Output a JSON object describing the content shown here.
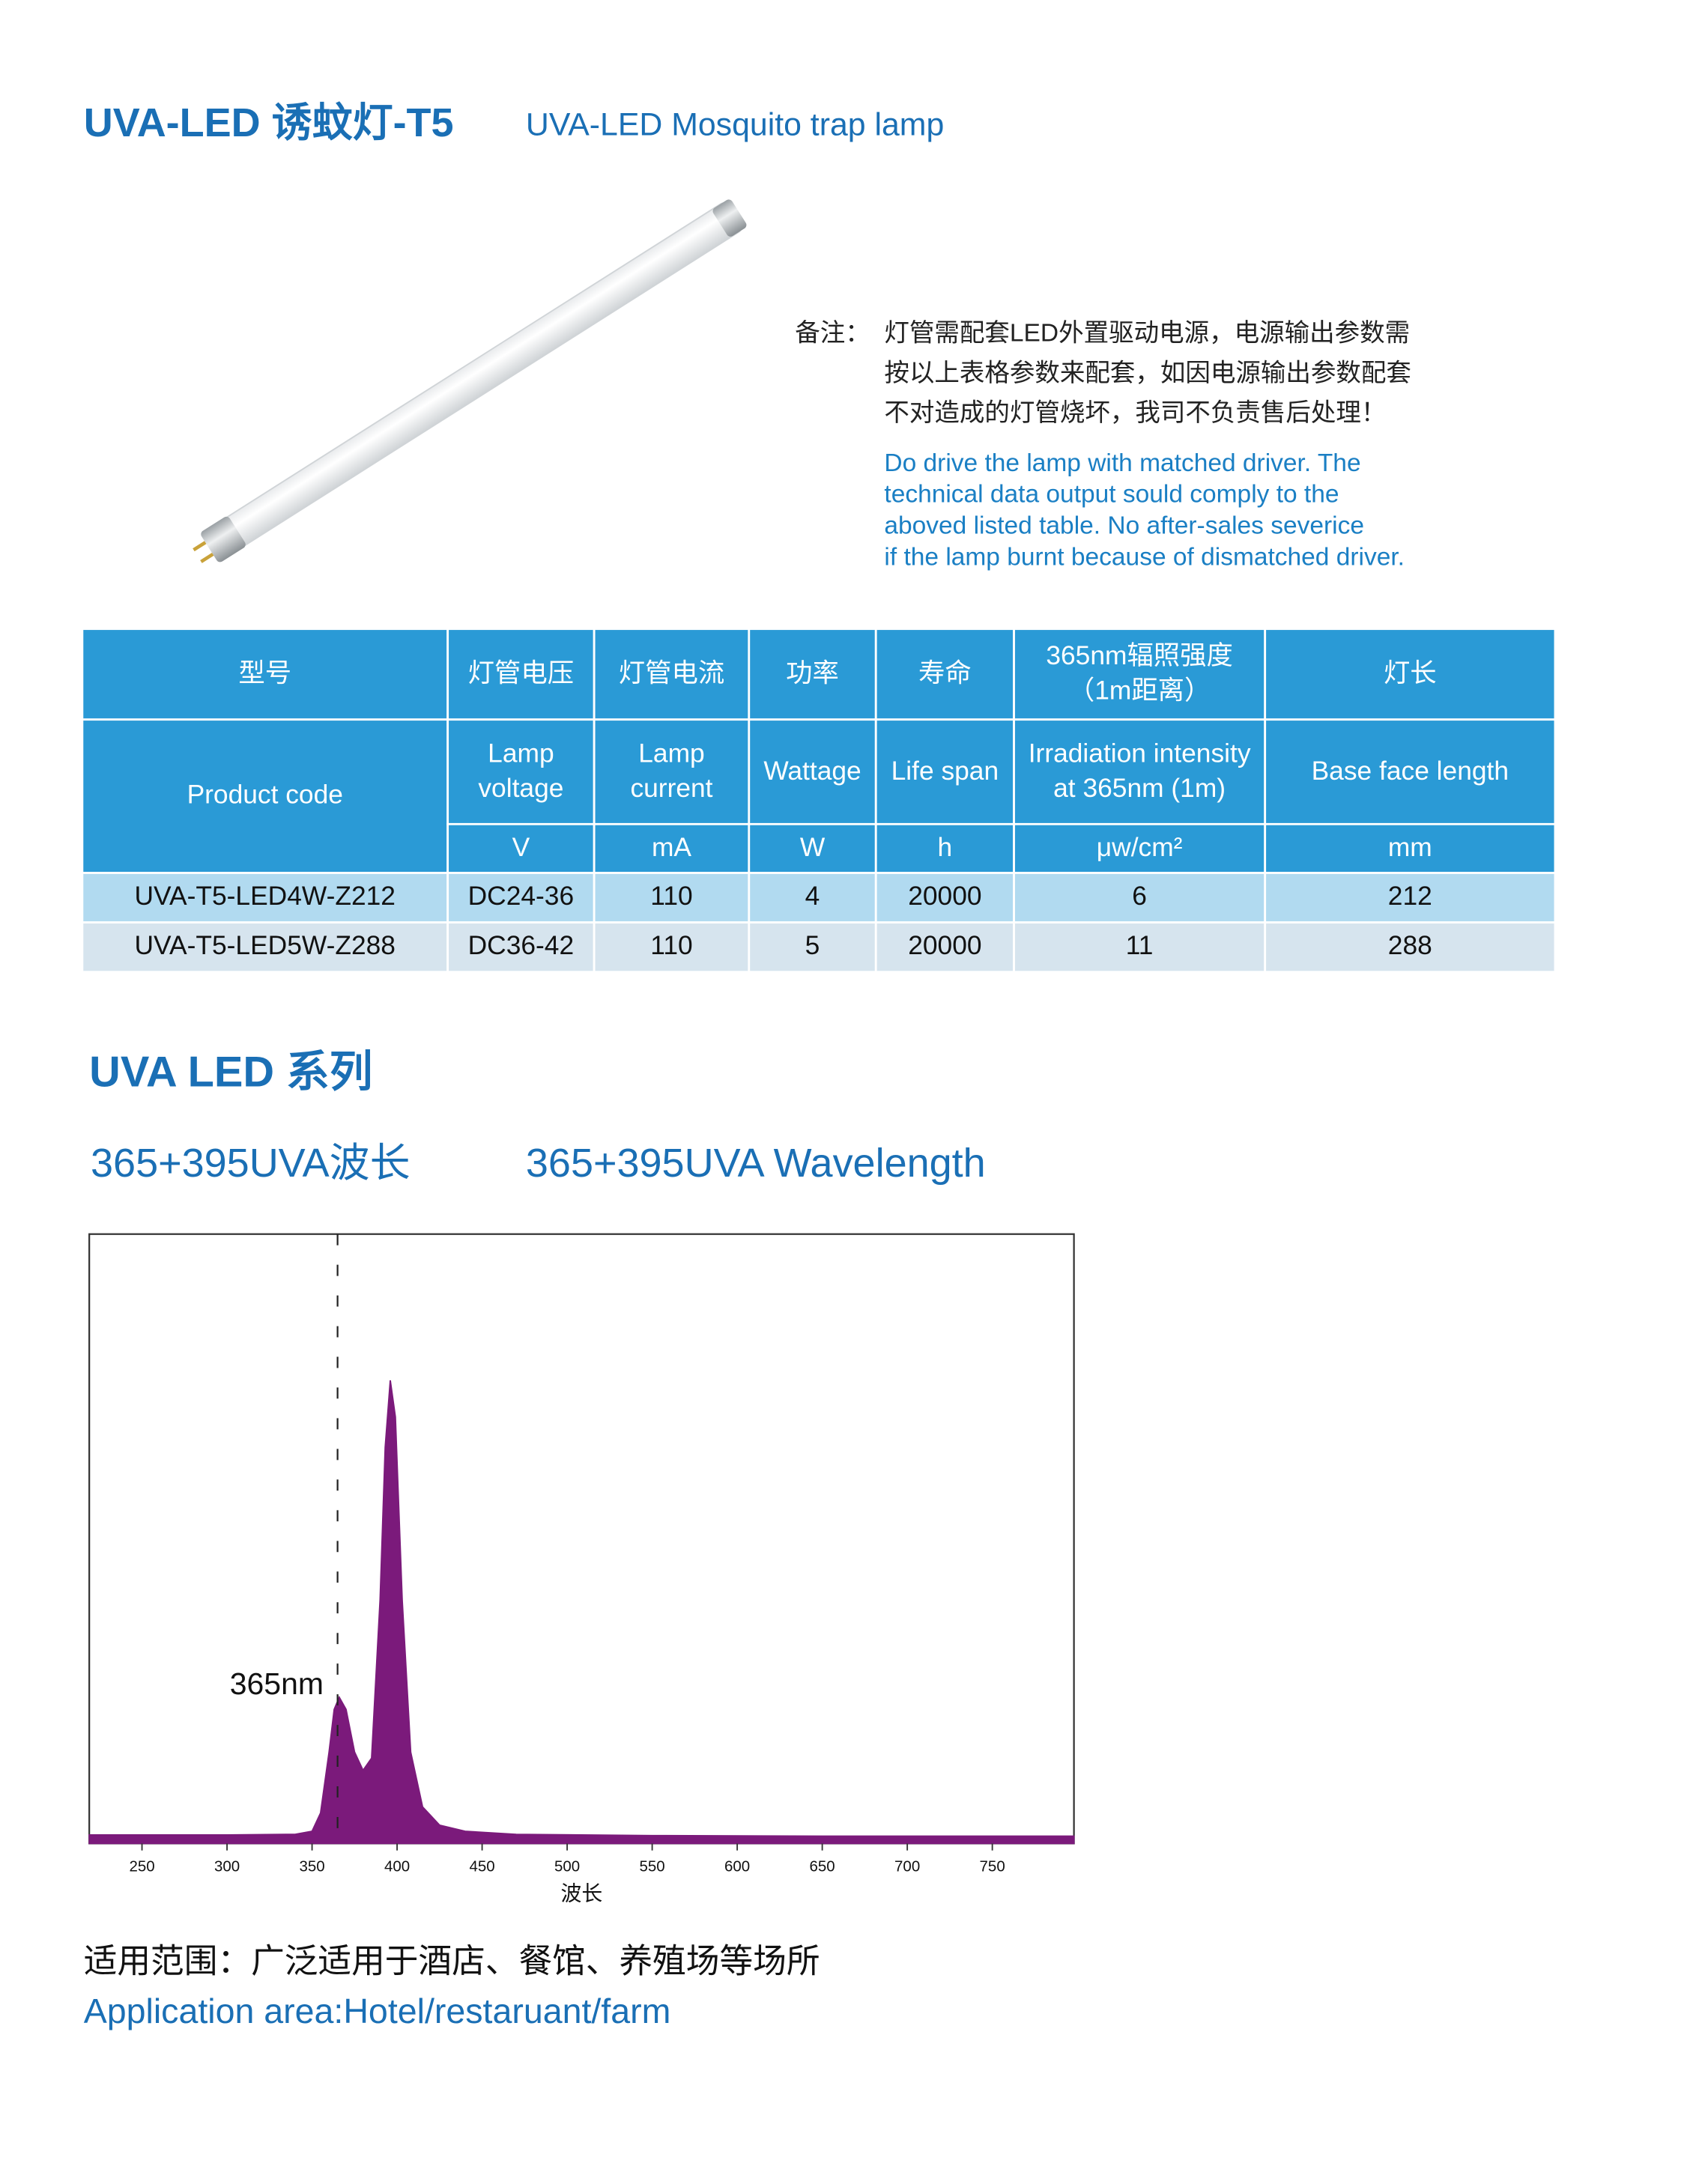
{
  "header": {
    "title": "UVA-LED 诱蚊灯-T5",
    "subtitle": "UVA-LED Mosquito trap lamp"
  },
  "note": {
    "label": "备注：",
    "lines_cn": [
      "灯管需配套LED外置驱动电源，电源输出参数需",
      "按以上表格参数来配套，如因电源输出参数配套",
      "不对造成的灯管烧坏，我司不负责售后处理！"
    ],
    "lines_en": [
      "Do drive the lamp with matched driver. The",
      "technical data output sould comply to the",
      "aboved listed table. No after-sales severice",
      "if the lamp burnt because of  dismatched driver."
    ]
  },
  "table": {
    "columns": [
      {
        "cn": [
          "型号"
        ],
        "en": [
          "Product  code"
        ]
      },
      {
        "cn": [
          "灯管电压"
        ],
        "en": [
          "Lamp",
          "voltage"
        ],
        "unit": "V"
      },
      {
        "cn": [
          "灯管电流"
        ],
        "en": [
          "Lamp",
          "current"
        ],
        "unit": "mA"
      },
      {
        "cn": [
          "功率"
        ],
        "en": [
          "Wattage"
        ],
        "unit": "W"
      },
      {
        "cn": [
          "寿命"
        ],
        "en": [
          "Life span"
        ],
        "unit": "h"
      },
      {
        "cn": [
          "365nm辐照强度",
          "（1m距离）"
        ],
        "en": [
          "Irradiation intensity",
          "at 365nm (1m)"
        ],
        "unit": "μw/cm²"
      },
      {
        "cn": [
          "灯长"
        ],
        "en": [
          "Base face length"
        ],
        "unit": "mm"
      }
    ],
    "rows": [
      [
        "UVA-T5-LED4W-Z212",
        "DC24-36",
        110,
        4,
        20000,
        6,
        212
      ],
      [
        "UVA-T5-LED5W-Z288",
        "DC36-42",
        110,
        5,
        20000,
        11,
        288
      ]
    ]
  },
  "section": {
    "title": "UVA LED 系列",
    "subtitle_cn": "365+395UVA波长",
    "subtitle_en": "365+395UVA Wavelength"
  },
  "chart_data": {
    "type": "area",
    "color": "#7b1a7b",
    "x": [
      219,
      300,
      340,
      350,
      355,
      360,
      363,
      366,
      370,
      375,
      380,
      385,
      390,
      393,
      396,
      399,
      403,
      408,
      415,
      425,
      440,
      470,
      550,
      650,
      798
    ],
    "values": [
      0.014,
      0.014,
      0.015,
      0.02,
      0.05,
      0.15,
      0.22,
      0.24,
      0.22,
      0.15,
      0.12,
      0.14,
      0.4,
      0.65,
      0.76,
      0.7,
      0.4,
      0.15,
      0.06,
      0.03,
      0.02,
      0.015,
      0.013,
      0.012,
      0.012
    ],
    "xlim": [
      219,
      798
    ],
    "ylim": [
      0,
      1
    ],
    "xticks": [
      250,
      300,
      350,
      400,
      450,
      500,
      550,
      600,
      650,
      700,
      750
    ],
    "xlabel": "波长",
    "annotations": [
      {
        "text": "365nm",
        "x": 365
      }
    ]
  },
  "application": {
    "cn": "适用范围：广泛适用于酒店、餐馆、养殖场等场所",
    "en": "Application area:Hotel/restaruant/farm"
  }
}
